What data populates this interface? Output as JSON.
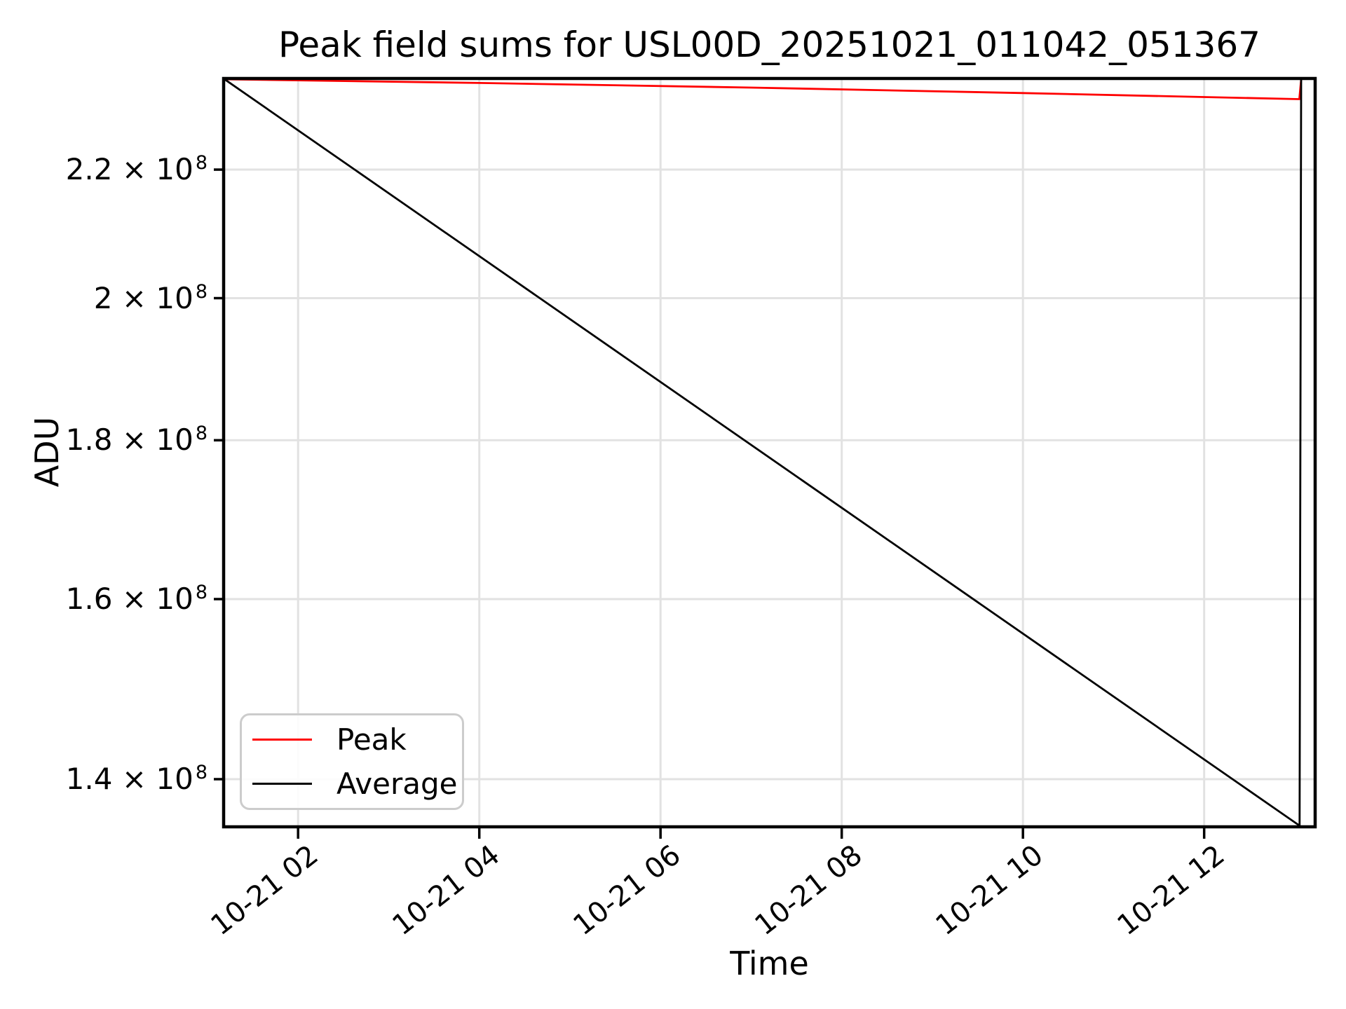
{
  "figure": {
    "background": "#ffffff",
    "grid_color": "#e2e2e2",
    "spine_color": "#000000",
    "legend_border_color": "#cccccc"
  },
  "chart_data": {
    "type": "line",
    "title": "Peak field sums for USL00D_20251021_011042_051367",
    "xlabel": "Time",
    "ylabel": "ADU",
    "grid": true,
    "x_axis": {
      "unit": "hours since 2025-10-21 00:00",
      "lim": [
        1.1783,
        13.225
      ],
      "ticks": [
        {
          "value": 2,
          "label": "10-21 02"
        },
        {
          "value": 4,
          "label": "10-21 04"
        },
        {
          "value": 6,
          "label": "10-21 06"
        },
        {
          "value": 8,
          "label": "10-21 08"
        },
        {
          "value": 10,
          "label": "10-21 10"
        },
        {
          "value": 12,
          "label": "10-21 12"
        }
      ]
    },
    "y_axis": {
      "scale": "log",
      "lim": [
        135140000,
        235380000
      ],
      "ticks": [
        {
          "value": 220000000,
          "label": "2.2 × 10^8"
        },
        {
          "value": 200000000,
          "label": "2 × 10^8"
        },
        {
          "value": 180000000,
          "label": "1.8 × 10^8"
        },
        {
          "value": 160000000,
          "label": "1.6 × 10^8"
        },
        {
          "value": 140000000,
          "label": "1.4 × 10^8"
        }
      ]
    },
    "series": [
      {
        "name": "Peak",
        "color": "#ff0000",
        "points": [
          [
            1.1783,
            235250000
          ],
          [
            4.0,
            234600000
          ],
          [
            7.0,
            233800000
          ],
          [
            10.0,
            232850000
          ],
          [
            13.05,
            231800000
          ],
          [
            13.07,
            235150000
          ]
        ]
      },
      {
        "name": "Average",
        "color": "#000000",
        "points": [
          [
            1.1783,
            235350000
          ],
          [
            13.053,
            135250000
          ],
          [
            13.07,
            235150000
          ]
        ]
      }
    ],
    "legend": {
      "position": "lower left",
      "entries": [
        {
          "label": "Peak"
        },
        {
          "label": "Average"
        }
      ]
    }
  }
}
